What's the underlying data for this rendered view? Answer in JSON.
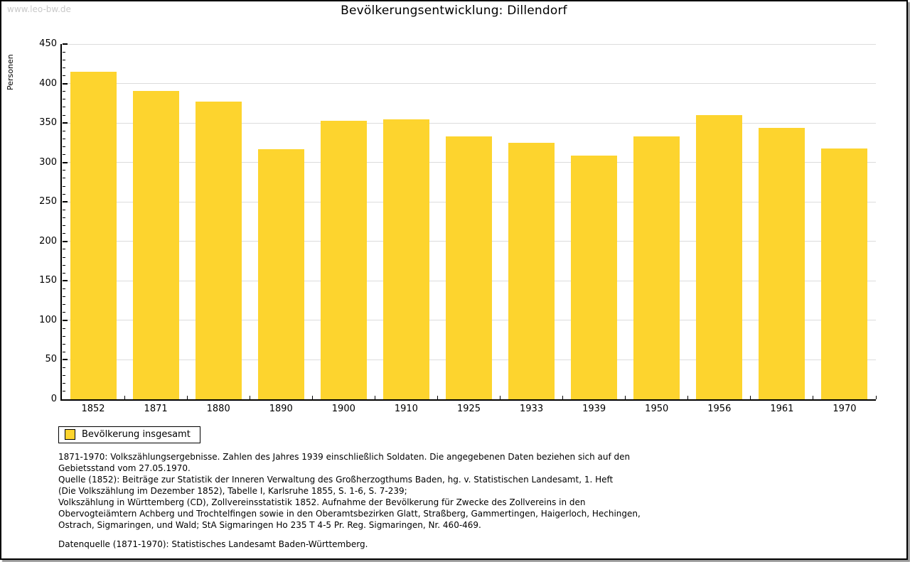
{
  "page": {
    "watermark": "www.leo-bw.de",
    "title": "Bevölkerungsentwicklung: Dillendorf"
  },
  "chart_data": {
    "type": "bar",
    "title": "Bevölkerungsentwicklung: Dillendorf",
    "xlabel": "",
    "ylabel": "Personen",
    "categories": [
      "1852",
      "1871",
      "1880",
      "1890",
      "1900",
      "1910",
      "1925",
      "1933",
      "1939",
      "1950",
      "1956",
      "1961",
      "1970"
    ],
    "series": [
      {
        "name": "Bevölkerung insgesamt",
        "values": [
          415,
          391,
          377,
          317,
          353,
          355,
          333,
          325,
          309,
          333,
          360,
          344,
          318
        ]
      }
    ],
    "ylim": [
      0,
      450
    ],
    "yticks": [
      0,
      50,
      100,
      150,
      200,
      250,
      300,
      350,
      400,
      450
    ],
    "minor_tick_step": 10,
    "grid": true,
    "legend_position": "bottom-left",
    "bar_color": "#FDD42E"
  },
  "legend": {
    "label": "Bevölkerung insgesamt",
    "swatch_color": "#FDD42E"
  },
  "footnotes": {
    "lines": [
      "1871-1970: Volkszählungsergebnisse. Zahlen des Jahres 1939 einschließlich Soldaten. Die angegebenen Daten beziehen sich auf den",
      "Gebietsstand vom 27.05.1970.",
      "Quelle (1852): Beiträge zur Statistik der Inneren Verwaltung des Großherzogthums Baden, hg. v. Statistischen Landesamt, 1. Heft",
      "(Die Volkszählung im Dezember 1852), Tabelle I, Karlsruhe 1855, S. 1-6, S. 7-239;",
      "Volkszählung in Württemberg (CD), Zollvereinsstatistik 1852. Aufnahme der Bevölkerung für Zwecke des Zollvereins in den",
      "Obervogteiämtern Achberg und Trochtelfingen sowie in den Oberamtsbezirken Glatt, Straßberg, Gammertingen, Haigerloch, Hechingen,",
      "Ostrach, Sigmaringen, und Wald; StA Sigmaringen Ho 235 T 4-5 Pr. Reg. Sigmaringen, Nr. 460-469."
    ],
    "datasource": "Datenquelle (1871-1970): Statistisches Landesamt Baden-Württemberg."
  },
  "colors": {
    "bar": "#FDD42E",
    "grid": "#DCDCDC",
    "axis": "#000000",
    "watermark": "#C9C9C9"
  }
}
